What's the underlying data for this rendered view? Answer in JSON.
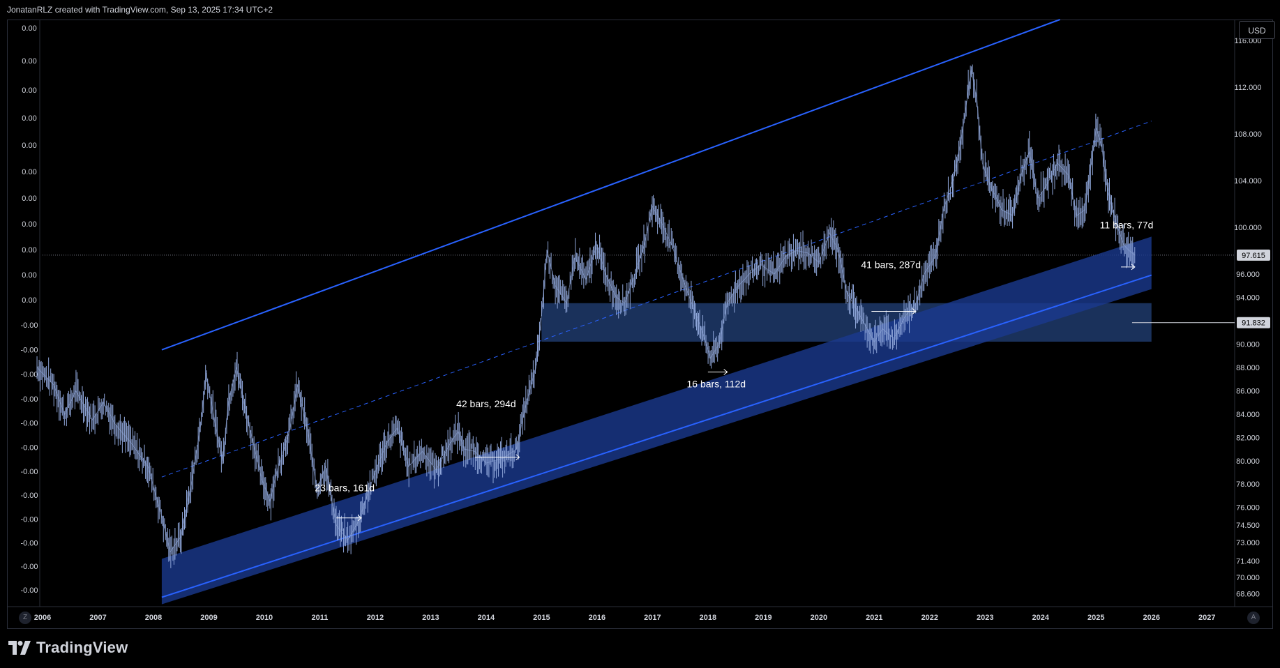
{
  "header": {
    "attribution": "JonatanRLZ created with TradingView.com, Sep 13, 2025 17:34 UTC+2"
  },
  "toolbar": {
    "currency": "USD",
    "timezone_button": "Z",
    "auto_scale_button": "A"
  },
  "brand": {
    "logo_text": "TradingView"
  },
  "colors": {
    "channel_line": "#2962ff",
    "band_fill": "#1a3a8f",
    "zone_fill": "#1e3a6b",
    "candles": "#8fa6d9",
    "background": "#000000"
  },
  "chart_data": {
    "type": "line",
    "title": "",
    "x_range": [
      2006,
      2027.5
    ],
    "y_range": [
      67.5,
      117.8
    ],
    "x_ticks": [
      "2006",
      "2007",
      "2008",
      "2009",
      "2010",
      "2011",
      "2012",
      "2013",
      "2014",
      "2015",
      "2016",
      "2017",
      "2018",
      "2019",
      "2020",
      "2021",
      "2022",
      "2023",
      "2024",
      "2025",
      "2026",
      "2027"
    ],
    "right_ticks": [
      "116.000",
      "112.000",
      "108.000",
      "104.000",
      "100.000",
      "96.000",
      "94.000",
      "90.000",
      "88.000",
      "86.000",
      "84.000",
      "82.000",
      "80.000",
      "78.000",
      "76.000",
      "74.500",
      "73.000",
      "71.400",
      "70.000",
      "68.600"
    ],
    "left_ticks": [
      "0.00",
      "0.00",
      "0.00",
      "0.00",
      "0.00",
      "0.00",
      "0.00",
      "0.00",
      "0.00",
      "0.00",
      "0.00",
      "-0.00",
      "-0.00",
      "-0.00",
      "-0.00",
      "-0.00",
      "-0.00",
      "-0.00",
      "-0.00",
      "-0.00",
      "-0.00",
      "-0.00",
      "-0.00"
    ],
    "last_price": "97.615",
    "zone_price": "91.832",
    "series": [
      {
        "values": [
          [
            2005.9,
            88.0
          ],
          [
            2006.2,
            86.5
          ],
          [
            2006.4,
            84.0
          ],
          [
            2006.6,
            86.0
          ],
          [
            2006.9,
            83.5
          ],
          [
            2007.1,
            85.0
          ],
          [
            2007.3,
            83.2
          ],
          [
            2007.6,
            81.5
          ],
          [
            2007.9,
            79.5
          ],
          [
            2008.15,
            75.2
          ],
          [
            2008.3,
            72.2
          ],
          [
            2008.5,
            73.5
          ],
          [
            2008.7,
            78.5
          ],
          [
            2008.85,
            83.0
          ],
          [
            2008.95,
            87.5
          ],
          [
            2009.1,
            83.5
          ],
          [
            2009.25,
            80.0
          ],
          [
            2009.35,
            85.0
          ],
          [
            2009.5,
            88.0
          ],
          [
            2009.7,
            83.5
          ],
          [
            2009.95,
            78.5
          ],
          [
            2010.1,
            76.5
          ],
          [
            2010.25,
            79.5
          ],
          [
            2010.45,
            82.5
          ],
          [
            2010.6,
            86.5
          ],
          [
            2010.8,
            82.0
          ],
          [
            2010.95,
            77.5
          ],
          [
            2011.1,
            79.5
          ],
          [
            2011.3,
            74.5
          ],
          [
            2011.5,
            73.2
          ],
          [
            2011.7,
            74.8
          ],
          [
            2011.85,
            77.0
          ],
          [
            2012.0,
            79.0
          ],
          [
            2012.2,
            81.5
          ],
          [
            2012.4,
            82.8
          ],
          [
            2012.6,
            79.5
          ],
          [
            2012.85,
            80.8
          ],
          [
            2013.1,
            79.2
          ],
          [
            2013.35,
            81.5
          ],
          [
            2013.5,
            82.5
          ],
          [
            2013.6,
            81.0
          ],
          [
            2013.8,
            80.8
          ],
          [
            2014.0,
            79.8
          ],
          [
            2014.3,
            80.2
          ],
          [
            2014.55,
            81.0
          ],
          [
            2014.7,
            84.5
          ],
          [
            2014.9,
            88.0
          ],
          [
            2015.0,
            92.5
          ],
          [
            2015.1,
            98.0
          ],
          [
            2015.25,
            95.0
          ],
          [
            2015.45,
            93.5
          ],
          [
            2015.6,
            97.5
          ],
          [
            2015.8,
            95.5
          ],
          [
            2016.0,
            98.5
          ],
          [
            2016.15,
            96.0
          ],
          [
            2016.35,
            94.0
          ],
          [
            2016.5,
            93.5
          ],
          [
            2016.65,
            95.5
          ],
          [
            2016.85,
            98.5
          ],
          [
            2017.0,
            101.8
          ],
          [
            2017.15,
            100.5
          ],
          [
            2017.35,
            98.5
          ],
          [
            2017.55,
            95.5
          ],
          [
            2017.75,
            93.0
          ],
          [
            2017.9,
            91.0
          ],
          [
            2018.05,
            88.8
          ],
          [
            2018.2,
            90.0
          ],
          [
            2018.35,
            93.5
          ],
          [
            2018.55,
            95.0
          ],
          [
            2018.75,
            96.0
          ],
          [
            2018.95,
            96.8
          ],
          [
            2019.2,
            96.0
          ],
          [
            2019.4,
            97.5
          ],
          [
            2019.6,
            98.0
          ],
          [
            2019.8,
            97.8
          ],
          [
            2020.0,
            97.0
          ],
          [
            2020.2,
            99.5
          ],
          [
            2020.35,
            98.0
          ],
          [
            2020.5,
            94.5
          ],
          [
            2020.65,
            93.2
          ],
          [
            2020.85,
            91.5
          ],
          [
            2021.0,
            90.2
          ],
          [
            2021.15,
            91.3
          ],
          [
            2021.35,
            90.5
          ],
          [
            2021.55,
            92.3
          ],
          [
            2021.75,
            93.5
          ],
          [
            2021.9,
            96.0
          ],
          [
            2022.1,
            97.5
          ],
          [
            2022.25,
            101.5
          ],
          [
            2022.45,
            104.5
          ],
          [
            2022.6,
            108.5
          ],
          [
            2022.75,
            113.5
          ],
          [
            2022.85,
            111.0
          ],
          [
            2022.95,
            105.5
          ],
          [
            2023.1,
            103.5
          ],
          [
            2023.3,
            101.5
          ],
          [
            2023.5,
            101.0
          ],
          [
            2023.65,
            104.5
          ],
          [
            2023.8,
            106.5
          ],
          [
            2023.95,
            102.5
          ],
          [
            2024.1,
            103.5
          ],
          [
            2024.3,
            105.5
          ],
          [
            2024.5,
            104.5
          ],
          [
            2024.65,
            101.0
          ],
          [
            2024.8,
            101.5
          ],
          [
            2025.0,
            108.5
          ],
          [
            2025.1,
            107.0
          ],
          [
            2025.2,
            103.5
          ],
          [
            2025.35,
            100.5
          ],
          [
            2025.5,
            98.5
          ],
          [
            2025.6,
            98.0
          ],
          [
            2025.7,
            97.6
          ]
        ]
      }
    ],
    "annotations": [
      {
        "label": "23 bars, 161d",
        "at": [
          2011.45,
          77.4
        ]
      },
      {
        "label": "42 bars, 294d",
        "at": [
          2014.0,
          84.6
        ]
      },
      {
        "label": "16 bars, 112d",
        "at": [
          2018.15,
          86.3
        ]
      },
      {
        "label": "41 bars, 287d",
        "at": [
          2021.3,
          96.5
        ]
      },
      {
        "label": "11 bars, 77d",
        "at": [
          2025.55,
          99.9
        ]
      }
    ]
  }
}
